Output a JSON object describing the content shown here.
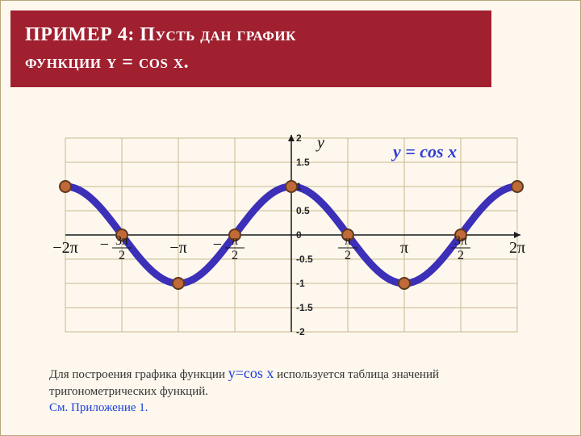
{
  "header": {
    "line1": "ПРИМЕР 4: Пусть  дан  график",
    "line2": "функции  y = cos x."
  },
  "chart": {
    "type": "line",
    "background_color": "#fdf7ed",
    "grid_color": "#c7b990",
    "axis_color": "#1a1a1a",
    "curve_color": "#3c2fb8",
    "curve_width": 9,
    "marker_fill": "#c06a3a",
    "marker_stroke": "#5e391d",
    "marker_radius": 7,
    "xlim": [
      -6.2832,
      6.2832
    ],
    "ylim": [
      -2,
      2
    ],
    "ytick_step": 0.5,
    "y_ticks": [
      "2",
      "1.5",
      "1",
      "0.5",
      "0",
      "-0.5",
      "-1",
      "-1.5",
      "-2"
    ],
    "x_ticks_pi": [
      "-2π",
      "-3π/2",
      "-π",
      "-π/2",
      "π/2",
      "π",
      "3π/2",
      "2π"
    ],
    "curve_label": "y = cos x",
    "y_axis_label": "y",
    "markers_x_pi": [
      -6.2832,
      -4.7124,
      -3.1416,
      -1.5708,
      0,
      1.5708,
      3.1416,
      4.7124,
      6.2832
    ]
  },
  "footer": {
    "text_a": "Для построения графика функции  ",
    "highlight": "y=cos x",
    "text_b": " используется таблица значений тригонометрических функций.",
    "link": "См. Приложение 1."
  }
}
